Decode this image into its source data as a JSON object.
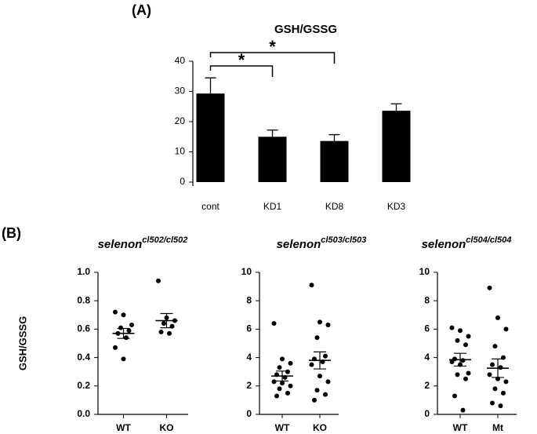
{
  "chart_data": [
    {
      "type": "bar",
      "panel": "(A)",
      "title": "GSH/GSSG",
      "categories": [
        "cont",
        "KD1",
        "KD8",
        "KD3"
      ],
      "values": [
        29.3,
        15,
        13.6,
        23.6
      ],
      "errors": [
        5.2,
        2.2,
        2.1,
        2.3
      ],
      "color": "#000000",
      "ylim": [
        0,
        40
      ],
      "yticks": [
        0,
        10,
        20,
        30,
        40
      ],
      "annotations": [
        {
          "text": "*",
          "from": "cont",
          "to": "KD1"
        },
        {
          "text": "*",
          "from": "cont",
          "to": "KD8"
        }
      ]
    },
    {
      "type": "dot",
      "panel": "(B)",
      "ylabel": "GSH/GSSG",
      "title": "selenon",
      "title_sup": "cl502/cl502",
      "categories": [
        "WT",
        "KO"
      ],
      "groups": [
        [
          0.72,
          0.7,
          0.63,
          0.61,
          0.59,
          0.57,
          0.54,
          0.47,
          0.39
        ],
        [
          0.94,
          0.68,
          0.66,
          0.64,
          0.62,
          0.58,
          0.57
        ]
      ],
      "means": [
        0.57,
        0.66
      ],
      "sems": [
        0.035,
        0.05
      ],
      "color": "#000000",
      "ylim": [
        0,
        1
      ],
      "yticks": [
        {
          "value": 0,
          "label": "0.0"
        },
        0.2,
        0.4,
        0.6,
        0.8,
        {
          "value": 1,
          "label": "1.0"
        }
      ]
    },
    {
      "type": "dot",
      "title": "selenon",
      "title_sup": "cl503/cl503",
      "categories": [
        "WT",
        "KO"
      ],
      "groups": [
        [
          6.4,
          3.9,
          3.6,
          3.3,
          3.0,
          2.8,
          2.6,
          2.3,
          2.2,
          2.0,
          1.8,
          1.5,
          1.3
        ],
        [
          9.1,
          6.5,
          6.3,
          5.4,
          4.1,
          3.9,
          3.7,
          3.5,
          2.7,
          2.3,
          1.7,
          1.4,
          1.0
        ]
      ],
      "means": [
        2.7,
        3.8
      ],
      "sems": [
        0.35,
        0.6
      ],
      "color": "#000000",
      "ylim": [
        0,
        10
      ],
      "yticks": [
        0,
        2,
        4,
        6,
        8,
        10
      ]
    },
    {
      "type": "dot",
      "title": "selenon",
      "title_sup": "cl504/cl504",
      "categories": [
        "WT",
        "Mt"
      ],
      "groups": [
        [
          6.1,
          5.9,
          5.5,
          5.2,
          4.9,
          3.9,
          3.8,
          3.7,
          3.5,
          2.9,
          2.8,
          2.5,
          1.3,
          0.3
        ],
        [
          8.9,
          6.8,
          6.0,
          4.8,
          4.0,
          3.5,
          3.3,
          2.8,
          2.5,
          2.3,
          1.8,
          1.5,
          0.8,
          0.6
        ]
      ],
      "means": [
        3.85,
        3.25
      ],
      "sems": [
        0.45,
        0.65
      ],
      "color": "#000000",
      "ylim": [
        0,
        10
      ],
      "yticks": [
        0,
        2,
        4,
        6,
        8,
        10
      ]
    }
  ]
}
